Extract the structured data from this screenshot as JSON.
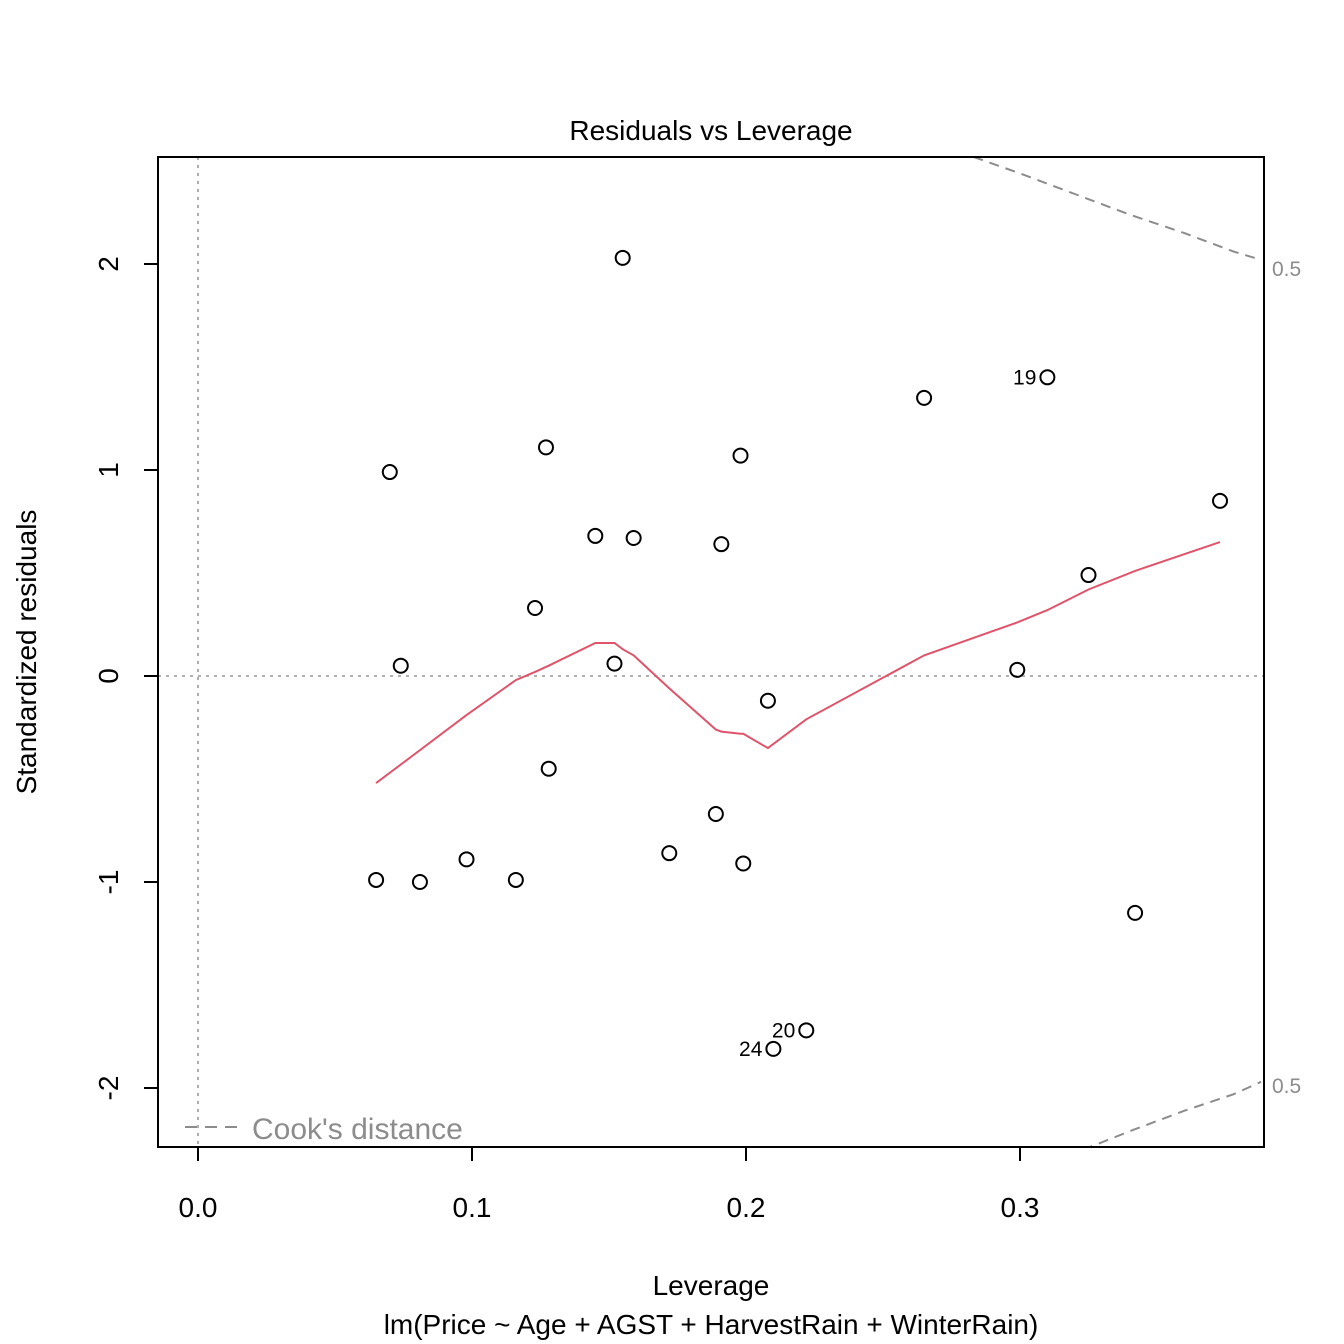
{
  "chart_data": {
    "type": "scatter",
    "title": "Residuals vs Leverage",
    "xlabel": "Leverage",
    "subtitle": "lm(Price ~ Age + AGST + HarvestRain + WinterRain)",
    "ylabel": "Standardized residuals",
    "xlim": [
      -0.015,
      0.388
    ],
    "ylim": [
      -2.3,
      2.52
    ],
    "x_ticks": [
      "0.0",
      "0.1",
      "0.2",
      "0.3"
    ],
    "x_tick_values": [
      0.0,
      0.1,
      0.2,
      0.3
    ],
    "y_ticks": [
      "-2",
      "-1",
      "0",
      "1",
      "2"
    ],
    "y_tick_values": [
      -2,
      -1,
      0,
      1,
      2
    ],
    "reference_lines": {
      "h": 0,
      "v": 0
    },
    "points": [
      {
        "x": 0.065,
        "y": -0.99
      },
      {
        "x": 0.07,
        "y": 0.99
      },
      {
        "x": 0.074,
        "y": 0.05
      },
      {
        "x": 0.081,
        "y": -1.0
      },
      {
        "x": 0.098,
        "y": -0.89
      },
      {
        "x": 0.116,
        "y": -0.99
      },
      {
        "x": 0.123,
        "y": 0.33
      },
      {
        "x": 0.127,
        "y": 1.11
      },
      {
        "x": 0.128,
        "y": -0.45
      },
      {
        "x": 0.145,
        "y": 0.68
      },
      {
        "x": 0.152,
        "y": 0.06
      },
      {
        "x": 0.155,
        "y": 2.03
      },
      {
        "x": 0.159,
        "y": 0.67
      },
      {
        "x": 0.172,
        "y": -0.86
      },
      {
        "x": 0.189,
        "y": -0.67
      },
      {
        "x": 0.191,
        "y": 0.64
      },
      {
        "x": 0.198,
        "y": 1.07
      },
      {
        "x": 0.199,
        "y": -0.91
      },
      {
        "x": 0.208,
        "y": -0.12
      },
      {
        "x": 0.21,
        "y": -1.81,
        "label": "24"
      },
      {
        "x": 0.222,
        "y": -1.72,
        "label": "20"
      },
      {
        "x": 0.265,
        "y": 1.35
      },
      {
        "x": 0.299,
        "y": 0.03
      },
      {
        "x": 0.31,
        "y": 1.45,
        "label": "19"
      },
      {
        "x": 0.325,
        "y": 0.49
      },
      {
        "x": 0.342,
        "y": -1.15
      },
      {
        "x": 0.373,
        "y": 0.85
      }
    ],
    "smooth_line": {
      "color": "#DF536B",
      "x": [
        0.065,
        0.075,
        0.098,
        0.116,
        0.123,
        0.128,
        0.145,
        0.152,
        0.155,
        0.159,
        0.172,
        0.189,
        0.191,
        0.198,
        0.199,
        0.208,
        0.222,
        0.265,
        0.299,
        0.31,
        0.325,
        0.342,
        0.373
      ],
      "y": [
        -0.52,
        -0.42,
        -0.19,
        -0.02,
        0.02,
        0.05,
        0.16,
        0.16,
        0.13,
        0.1,
        -0.06,
        -0.26,
        -0.27,
        -0.28,
        -0.28,
        -0.35,
        -0.21,
        0.1,
        0.26,
        0.32,
        0.42,
        0.51,
        0.65
      ]
    },
    "cooks_distance": {
      "level_label": "0.5",
      "color": "#8c8c8c",
      "upper": {
        "x": [
          0.283,
          0.3,
          0.32,
          0.34,
          0.36,
          0.378,
          0.388
        ],
        "y": [
          2.52,
          2.44,
          2.34,
          2.24,
          2.15,
          2.06,
          2.02
        ]
      },
      "lower": {
        "x": [
          0.323,
          0.34,
          0.36,
          0.378,
          0.388
        ],
        "y": [
          -2.3,
          -2.21,
          -2.11,
          -2.03,
          -1.97
        ]
      }
    },
    "legend": {
      "text": "Cook's distance",
      "placement": "bottom-left"
    }
  }
}
